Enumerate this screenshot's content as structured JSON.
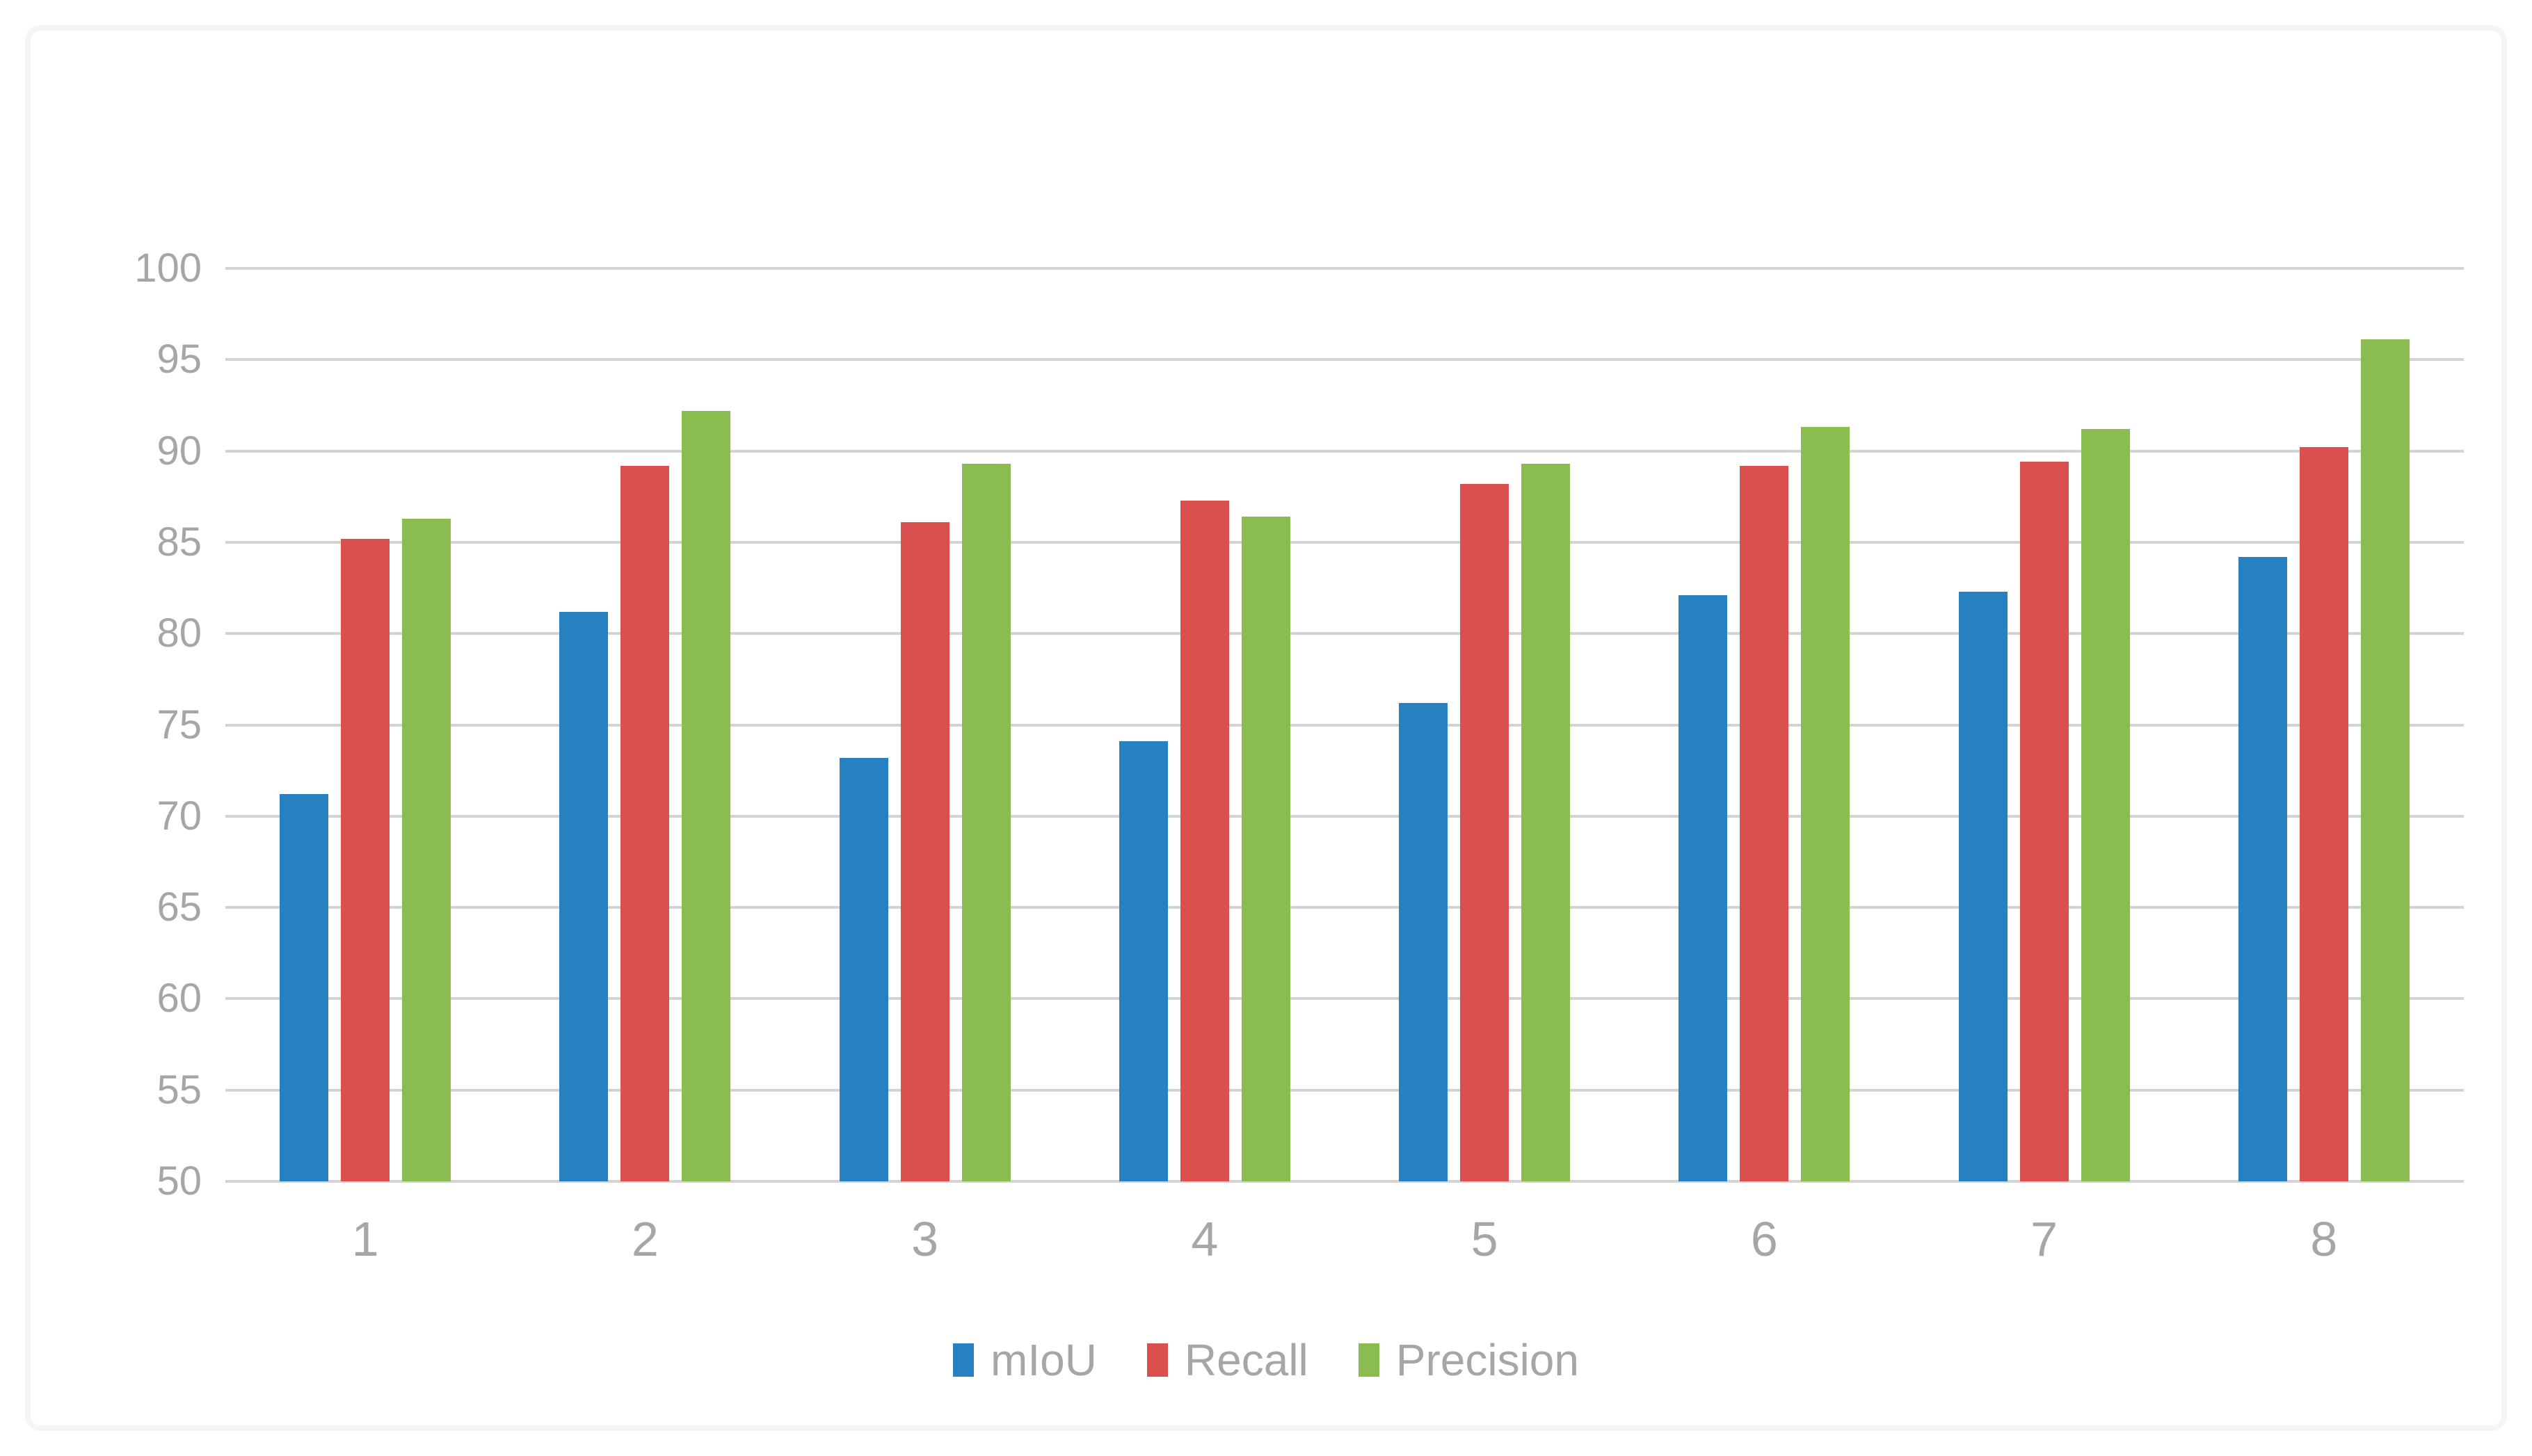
{
  "figure": {
    "background": "#ffffff",
    "border_color": "#f5f5f5"
  },
  "chart_data": {
    "type": "bar",
    "title": "",
    "xlabel": "",
    "ylabel": "",
    "categories": [
      "1",
      "2",
      "3",
      "4",
      "5",
      "6",
      "7",
      "8"
    ],
    "series": [
      {
        "name": "mIoU",
        "color": "#2781C1",
        "values": [
          71.2,
          81.2,
          73.2,
          74.1,
          76.2,
          82.1,
          82.3,
          84.2
        ]
      },
      {
        "name": "Recall",
        "color": "#D9504E",
        "values": [
          85.2,
          89.2,
          86.1,
          87.3,
          88.2,
          89.2,
          89.4,
          90.2
        ]
      },
      {
        "name": "Precision",
        "color": "#8ABC50",
        "values": [
          86.3,
          92.2,
          89.3,
          86.4,
          89.3,
          91.3,
          91.2,
          96.1
        ]
      }
    ],
    "ylim": [
      50,
      100
    ],
    "yticks": [
      50,
      55,
      60,
      65,
      70,
      75,
      80,
      85,
      90,
      95,
      100
    ],
    "grid": true,
    "gridline_color": "#D3D3D3",
    "tick_label_color": "#A6A6A6",
    "legend_position": "bottom"
  }
}
